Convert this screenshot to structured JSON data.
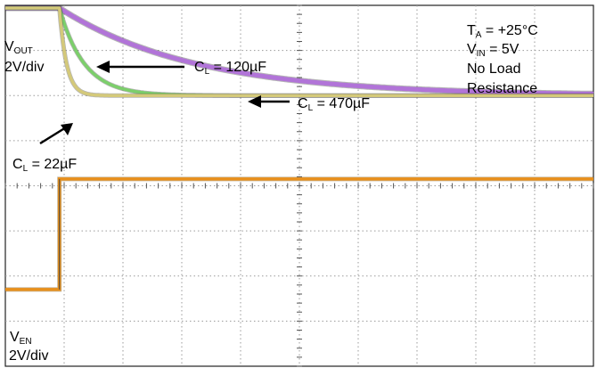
{
  "chart_data": {
    "type": "line",
    "divisions": {
      "x": 10,
      "y": 8
    },
    "vout_channel": {
      "name": "VOUT",
      "label_main": "V",
      "label_sub": "OUT",
      "scale": "2V/div"
    },
    "ven_channel": {
      "name": "VEN",
      "label_main": "V",
      "label_sub": "EN",
      "scale": "2V/div"
    },
    "conditions": [
      {
        "main": "T",
        "sub": "A",
        "rest": " = +25°C"
      },
      {
        "main": "V",
        "sub": "IN",
        "rest": " = 5V"
      },
      {
        "main": "No Load",
        "sub": "",
        "rest": ""
      },
      {
        "main": "Resistance",
        "sub": "",
        "rest": ""
      }
    ],
    "annotations": [
      {
        "id": "cl22",
        "main": "C",
        "sub": "L",
        "rest": " = 22µF"
      },
      {
        "id": "cl120",
        "main": "C",
        "sub": "L",
        "rest": " = 120µF"
      },
      {
        "id": "cl470",
        "main": "C",
        "sub": "L",
        "rest": " = 470µF"
      }
    ],
    "series": [
      {
        "name": "CL = 22µF",
        "color": "#d4c97a",
        "start_div": 0.92,
        "high_div": 0.06,
        "low_div": 2.0,
        "tau_div": 0.12
      },
      {
        "name": "CL = 120µF",
        "color": "#7ccf6b",
        "start_div": 0.92,
        "high_div": 0.06,
        "low_div": 2.0,
        "tau_div": 0.42
      },
      {
        "name": "CL = 470µF",
        "color": "#b174d8",
        "start_div": 0.92,
        "high_div": 0.06,
        "low_div": 2.0,
        "tau_div": 2.3
      },
      {
        "name": "VEN",
        "color": "#e8901c",
        "step_div": 0.92,
        "low_div": 6.3,
        "high_div": 3.85
      }
    ]
  }
}
